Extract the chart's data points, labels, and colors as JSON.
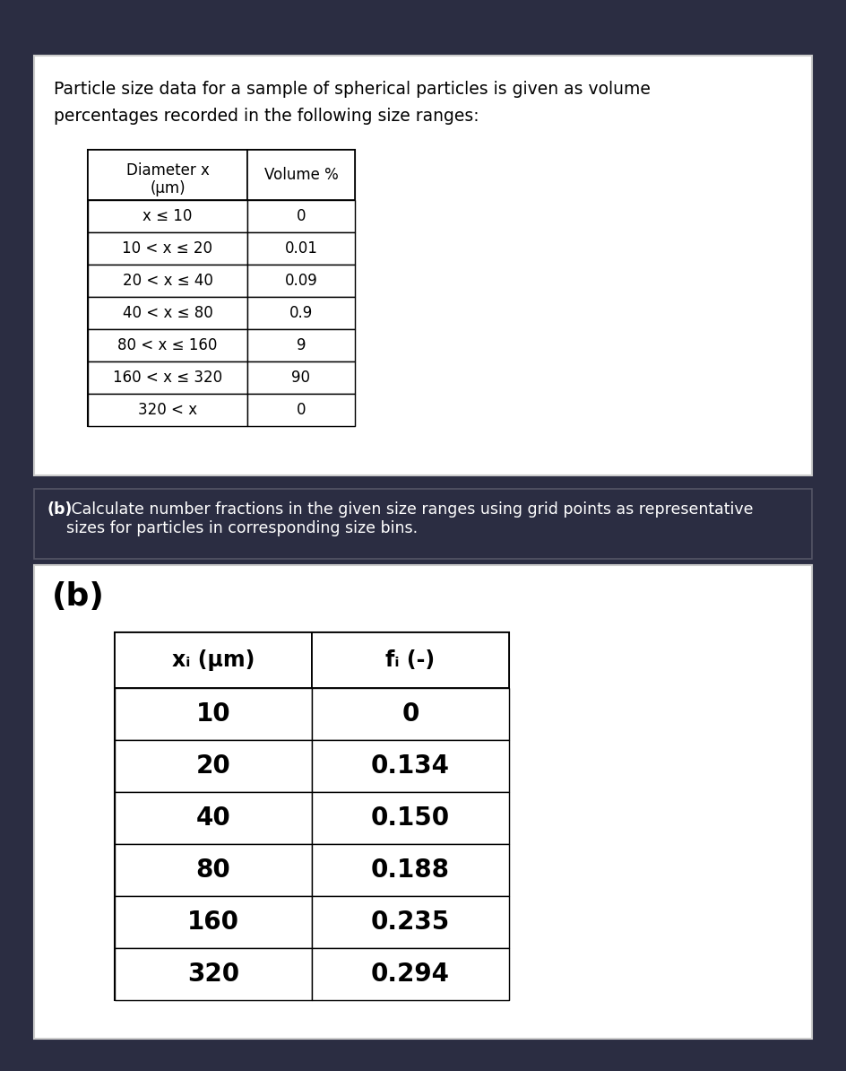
{
  "bg_color": "#2b2d42",
  "white_color": "#ffffff",
  "black_color": "#000000",
  "intro_text_line1": "Particle size data for a sample of spherical particles is given as volume",
  "intro_text_line2": "percentages recorded in the following size ranges:",
  "table1_col1_header_line1": "Diameter x",
  "table1_col1_header_line2": "(μm)",
  "table1_col2_header": "Volume %",
  "table1_rows": [
    [
      "x ≤ 10",
      "0"
    ],
    [
      "10 < x ≤ 20",
      "0.01"
    ],
    [
      "20 < x ≤ 40",
      "0.09"
    ],
    [
      "40 < x ≤ 80",
      "0.9"
    ],
    [
      "80 < x ≤ 160",
      "9"
    ],
    [
      "160 < x ≤ 320",
      "90"
    ],
    [
      "320 < x",
      "0"
    ]
  ],
  "problem_b_bold": "(b)",
  "problem_b_rest": " Calculate number fractions in the given size ranges using grid points as representative\nsizes for particles in corresponding size bins.",
  "answer_b_label": "(b)",
  "table2_col1_header": "xᵢ (μm)",
  "table2_col2_header": "fᵢ (-)",
  "table2_rows": [
    [
      "10",
      "0"
    ],
    [
      "20",
      "0.134"
    ],
    [
      "40",
      "0.150"
    ],
    [
      "80",
      "0.188"
    ],
    [
      "160",
      "0.235"
    ],
    [
      "320",
      "0.294"
    ]
  ]
}
